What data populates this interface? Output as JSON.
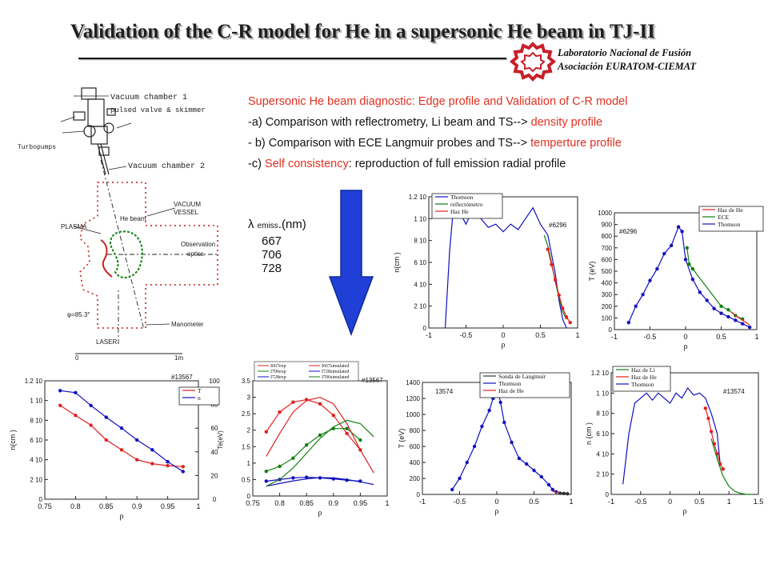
{
  "title": "Validation of the C-R model for He in a supersonic He beam in TJ-II",
  "lab": {
    "line1": "Laboratorio Nacional de Fusión",
    "line2": "Asociación EURATOM-CIEMAT",
    "logo_color": "#c8202a"
  },
  "bullets": {
    "b0": "Supersonic He beam diagnostic: Edge profile and Validation of C-R model",
    "b1_pre": "-a)  Comparison with reflectrometry, Li beam and TS--> ",
    "b1_red": "density profile",
    "b2_pre": "- b) Comparison with ECE Langmuir probes and TS--> ",
    "b2_red": "temperture profile",
    "b3_pre": "-c)   ",
    "b3_red": "Self consistency",
    "b3_post": ": reproduction of full emission radial profile"
  },
  "lambda": {
    "symbol": "λ",
    "sub": "emiss",
    "unit": ".(nm)",
    "values": [
      "667",
      "706",
      "728"
    ]
  },
  "arrow_color": "#1f3fd6",
  "schematic": {
    "vc1": "Vacuum chamber 1",
    "pulsed": "pulsed valve & skimmer",
    "turbo": "Turbopumps",
    "vc2": "Vacuum chamber 2",
    "vessel1": "VACUUM",
    "vessel2": "VESSEL",
    "hebeam": "He beam",
    "plasma": "PLASMA",
    "obs1": "Observation",
    "obs2": "optics",
    "phi": "φ=85.3°",
    "manometer": "Manometer",
    "laser": "LASER",
    "scale0": "0",
    "scale1": "1m"
  },
  "chart_data": [
    {
      "id": "density-6296",
      "type": "line",
      "shot": "#6296",
      "legend": [
        "Thomson",
        "reflectómetro",
        "Haz He"
      ],
      "series_colors": [
        "#1010c0",
        "#108010",
        "#e02020"
      ],
      "xlim": [
        -1,
        1
      ],
      "xticks": [
        "-1",
        "-0.5",
        "0",
        "0.5",
        "1"
      ],
      "ylim": [
        0,
        1.2
      ],
      "yticks": [
        "0",
        "2 10",
        "4 10",
        "6 10",
        "8 10",
        "1 10",
        "1.2 10"
      ],
      "xlabel": "ρ",
      "ylabel": "n(cm    )",
      "series": [
        {
          "name": "Thomson",
          "x": [
            -0.78,
            -0.72,
            -0.68,
            -0.6,
            -0.5,
            -0.4,
            -0.3,
            -0.2,
            -0.1,
            0,
            0.1,
            0.2,
            0.3,
            0.4,
            0.5,
            0.6,
            0.7,
            0.75,
            0.8,
            0.85
          ],
          "y": [
            0,
            0.7,
            1.02,
            1.08,
            0.95,
            1.1,
            1.0,
            0.92,
            0.95,
            0.88,
            0.95,
            0.9,
            1.0,
            1.1,
            0.95,
            0.85,
            0.5,
            0.25,
            0.08,
            0.0
          ]
        },
        {
          "name": "reflectómetro",
          "x": [
            0.55,
            0.6,
            0.65,
            0.7,
            0.75,
            0.8,
            0.85
          ],
          "y": [
            0.85,
            0.75,
            0.6,
            0.42,
            0.28,
            0.15,
            0.08
          ]
        },
        {
          "name": "Haz He",
          "x": [
            0.6,
            0.65,
            0.7,
            0.75,
            0.8,
            0.85,
            0.9
          ],
          "y": [
            0.72,
            0.58,
            0.44,
            0.3,
            0.18,
            0.1,
            0.05
          ]
        }
      ]
    },
    {
      "id": "temperature-6296",
      "type": "line",
      "shot": "#6296",
      "legend": [
        "Haz de He",
        "ECE",
        "Thomson"
      ],
      "series_colors": [
        "#e02020",
        "#108010",
        "#1010c0"
      ],
      "xlim": [
        -1,
        1
      ],
      "xticks": [
        "-1",
        "-0.5",
        "0",
        "0.5",
        "1"
      ],
      "ylim": [
        0,
        1000
      ],
      "yticks": [
        "0",
        "100",
        "200",
        "300",
        "400",
        "500",
        "600",
        "700",
        "800",
        "900",
        "1000"
      ],
      "xlabel": "ρ",
      "ylabel": "T (eV)",
      "series": [
        {
          "name": "Thomson",
          "x": [
            -0.8,
            -0.7,
            -0.6,
            -0.5,
            -0.4,
            -0.3,
            -0.2,
            -0.1,
            -0.05,
            0,
            0.1,
            0.2,
            0.3,
            0.4,
            0.5,
            0.6,
            0.7,
            0.8,
            0.9
          ],
          "y": [
            60,
            200,
            300,
            420,
            520,
            650,
            720,
            880,
            840,
            600,
            430,
            320,
            250,
            180,
            140,
            110,
            80,
            50,
            20
          ]
        },
        {
          "name": "ECE",
          "x": [
            0.02,
            0.05,
            0.1,
            0.5,
            0.6,
            0.7,
            0.8
          ],
          "y": [
            700,
            560,
            520,
            200,
            170,
            120,
            90
          ]
        },
        {
          "name": "Haz de He",
          "x": [
            0.65,
            0.7,
            0.75,
            0.8,
            0.85,
            0.9
          ],
          "y": [
            150,
            120,
            100,
            80,
            60,
            40
          ]
        }
      ]
    },
    {
      "id": "te-ne-13567",
      "type": "line",
      "shot": "#13567",
      "legend": [
        "T",
        "n"
      ],
      "series_colors": [
        "#e02020",
        "#1010c0"
      ],
      "xlim": [
        0.75,
        1
      ],
      "xticks": [
        "0.75",
        "0.8",
        "0.85",
        "0.9",
        "0.95",
        "1"
      ],
      "ylim": [
        0,
        1.2
      ],
      "yticks": [
        "0",
        "2 10",
        "4 10",
        "6 10",
        "8 10",
        "1 10",
        "1.2 10"
      ],
      "y2lim": [
        0,
        100
      ],
      "y2ticks": [
        "0",
        "20",
        "40",
        "60",
        "80",
        "100"
      ],
      "xlabel": "ρ",
      "ylabel": "n(cm  )",
      "y2label": "Te(eV)",
      "series": [
        {
          "name": "T",
          "x": [
            0.775,
            0.8,
            0.825,
            0.85,
            0.875,
            0.9,
            0.925,
            0.95,
            0.975
          ],
          "y": [
            0.95,
            0.85,
            0.75,
            0.6,
            0.5,
            0.4,
            0.36,
            0.34,
            0.33
          ]
        },
        {
          "name": "n",
          "x": [
            0.775,
            0.8,
            0.825,
            0.85,
            0.875,
            0.9,
            0.925,
            0.95,
            0.975
          ],
          "y": [
            1.1,
            1.08,
            0.95,
            0.83,
            0.72,
            0.6,
            0.5,
            0.38,
            0.28
          ]
        }
      ]
    },
    {
      "id": "emission-13567",
      "type": "line",
      "shot": "#13567",
      "legend": [
        "I667exp",
        "I706exp",
        "I728exp",
        "I667simulated",
        "I728simulated",
        "I706simulated"
      ],
      "series_colors": [
        "#e02020",
        "#108010",
        "#1010c0",
        "#e02020",
        "#1010c0",
        "#108010"
      ],
      "xlim": [
        0.75,
        1
      ],
      "xticks": [
        "0.75",
        "0.8",
        "0.85",
        "0.9",
        "0.95",
        "1"
      ],
      "ylim": [
        0,
        3.5
      ],
      "yticks": [
        "0",
        "0.5",
        "1",
        "1.5",
        "2",
        "2.5",
        "3",
        "3.5"
      ],
      "xlabel": "ρ",
      "series": [
        {
          "name": "I667exp",
          "x": [
            0.775,
            0.8,
            0.825,
            0.85,
            0.875,
            0.9,
            0.925,
            0.95
          ],
          "y": [
            1.95,
            2.55,
            2.85,
            2.93,
            2.8,
            2.45,
            1.9,
            1.4
          ]
        },
        {
          "name": "I706exp",
          "x": [
            0.775,
            0.8,
            0.825,
            0.85,
            0.875,
            0.9,
            0.925,
            0.95
          ],
          "y": [
            0.75,
            0.9,
            1.15,
            1.55,
            1.85,
            2.05,
            2.05,
            1.7
          ]
        },
        {
          "name": "I728exp",
          "x": [
            0.775,
            0.8,
            0.825,
            0.85,
            0.875,
            0.9,
            0.925,
            0.95
          ],
          "y": [
            0.45,
            0.5,
            0.55,
            0.57,
            0.55,
            0.52,
            0.48,
            0.45
          ]
        },
        {
          "name": "I667simulated",
          "x": [
            0.775,
            0.8,
            0.825,
            0.85,
            0.875,
            0.9,
            0.925,
            0.95,
            0.975
          ],
          "y": [
            1.2,
            1.9,
            2.55,
            2.9,
            3.0,
            2.8,
            2.2,
            1.4,
            0.7
          ]
        },
        {
          "name": "I728simulated",
          "x": [
            0.775,
            0.8,
            0.825,
            0.85,
            0.875,
            0.9,
            0.925,
            0.95,
            0.975
          ],
          "y": [
            0.3,
            0.38,
            0.46,
            0.52,
            0.56,
            0.55,
            0.5,
            0.43,
            0.35
          ]
        },
        {
          "name": "I706simulated",
          "x": [
            0.775,
            0.8,
            0.825,
            0.85,
            0.875,
            0.9,
            0.925,
            0.95,
            0.975
          ],
          "y": [
            0.3,
            0.5,
            0.85,
            1.3,
            1.75,
            2.1,
            2.3,
            2.2,
            1.8
          ]
        }
      ]
    },
    {
      "id": "temperature-13574",
      "type": "line",
      "shot": "13574",
      "legend": [
        "Sonda de Langmuir",
        "Thomson",
        "Haz de He"
      ],
      "series_colors": [
        "#333333",
        "#1010c0",
        "#e02020"
      ],
      "xlim": [
        -1,
        1
      ],
      "xticks": [
        "-1",
        "-0.5",
        "0",
        "0.5",
        "1"
      ],
      "ylim": [
        0,
        1400
      ],
      "yticks": [
        "0",
        "200",
        "400",
        "600",
        "800",
        "1000",
        "1200",
        "1400"
      ],
      "xlabel": "ρ",
      "ylabel": "T (eV)",
      "series": [
        {
          "name": "Thomson",
          "x": [
            -0.6,
            -0.5,
            -0.4,
            -0.3,
            -0.2,
            -0.1,
            -0.05,
            0,
            0.05,
            0.1,
            0.2,
            0.3,
            0.4,
            0.5,
            0.6,
            0.7,
            0.75,
            0.8
          ],
          "y": [
            60,
            200,
            400,
            600,
            850,
            1050,
            1200,
            1350,
            1150,
            900,
            650,
            450,
            380,
            300,
            220,
            120,
            60,
            30
          ]
        },
        {
          "name": "Haz de He",
          "x": [
            0.75,
            0.8,
            0.85,
            0.9,
            0.95
          ],
          "y": [
            40,
            25,
            20,
            15,
            10
          ]
        },
        {
          "name": "Sonda de Langmuir",
          "x": [
            0.85,
            0.9,
            0.95
          ],
          "y": [
            15,
            12,
            8
          ]
        }
      ]
    },
    {
      "id": "density-13574",
      "type": "line",
      "shot": "#13574",
      "legend": [
        "Haz de Li",
        "Haz de He",
        "Thomson"
      ],
      "series_colors": [
        "#108010",
        "#e02020",
        "#1010c0"
      ],
      "xlim": [
        -1,
        1.5
      ],
      "xticks": [
        "-1",
        "-0.5",
        "0",
        "0.5",
        "1",
        "1.5"
      ],
      "ylim": [
        0,
        1.2
      ],
      "yticks": [
        "0",
        "2 10",
        "4 10",
        "6 10",
        "8 10",
        "1 10",
        "1.2 10"
      ],
      "xlabel": "ρ",
      "ylabel": "n (cm    )",
      "series": [
        {
          "name": "Thomson",
          "x": [
            -0.8,
            -0.7,
            -0.6,
            -0.5,
            -0.4,
            -0.3,
            -0.2,
            -0.1,
            0,
            0.1,
            0.2,
            0.3,
            0.4,
            0.5,
            0.6,
            0.7,
            0.8,
            0.85
          ],
          "y": [
            0.1,
            0.6,
            0.9,
            0.95,
            1.0,
            0.93,
            1.0,
            0.95,
            0.9,
            1.0,
            0.95,
            1.05,
            0.98,
            1.0,
            0.95,
            0.8,
            0.6,
            0.3
          ]
        },
        {
          "name": "Haz de He",
          "x": [
            0.6,
            0.65,
            0.7,
            0.75,
            0.8,
            0.85,
            0.9
          ],
          "y": [
            0.85,
            0.75,
            0.62,
            0.5,
            0.4,
            0.3,
            0.25
          ]
        },
        {
          "name": "Haz de Li",
          "x": [
            0.7,
            0.8,
            0.9,
            1.0,
            1.1,
            1.2,
            1.3,
            1.4
          ],
          "y": [
            0.55,
            0.35,
            0.18,
            0.08,
            0.03,
            0.01,
            0.0,
            0.0
          ]
        }
      ]
    }
  ]
}
